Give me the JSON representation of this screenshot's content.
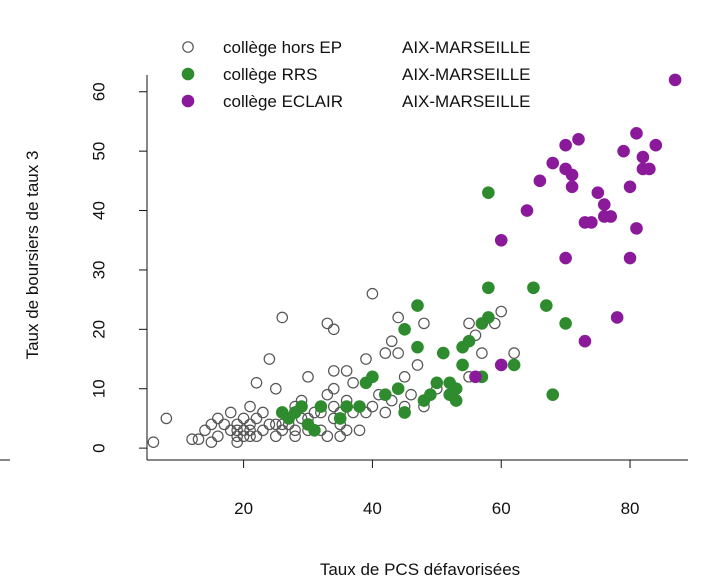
{
  "chart_data": {
    "type": "scatter",
    "title": "",
    "xlabel": "Taux de PCS défavorisées",
    "ylabel": "Taux de boursiers de taux 3",
    "xlim": [
      5,
      89
    ],
    "ylim": [
      -2,
      64
    ],
    "xticks": [
      20,
      40,
      60,
      80
    ],
    "yticks": [
      0,
      10,
      20,
      30,
      40,
      50,
      60
    ],
    "grid": false,
    "legend_position": "top-left",
    "series": [
      {
        "name": "collège hors EP",
        "region": "AIX-MARSEILLE",
        "marker": "open-circle",
        "color": "#555555",
        "points": [
          [
            6,
            1
          ],
          [
            8,
            5
          ],
          [
            12,
            1.5
          ],
          [
            13,
            1.5
          ],
          [
            14,
            3
          ],
          [
            15,
            1
          ],
          [
            15,
            4
          ],
          [
            16,
            2
          ],
          [
            16,
            5
          ],
          [
            17,
            4
          ],
          [
            18,
            3
          ],
          [
            18,
            6
          ],
          [
            19,
            1
          ],
          [
            19,
            2
          ],
          [
            19,
            3
          ],
          [
            19,
            4
          ],
          [
            20,
            2
          ],
          [
            20,
            3
          ],
          [
            20,
            5
          ],
          [
            21,
            2
          ],
          [
            21,
            3
          ],
          [
            21,
            4
          ],
          [
            21,
            7
          ],
          [
            22,
            2
          ],
          [
            22,
            5
          ],
          [
            22,
            11
          ],
          [
            23,
            3
          ],
          [
            23,
            6
          ],
          [
            24,
            4
          ],
          [
            24,
            15
          ],
          [
            25,
            2
          ],
          [
            25,
            4
          ],
          [
            25,
            10
          ],
          [
            26,
            3
          ],
          [
            26,
            4
          ],
          [
            26,
            6
          ],
          [
            26,
            22
          ],
          [
            27,
            4
          ],
          [
            27,
            5
          ],
          [
            28,
            2
          ],
          [
            28,
            3
          ],
          [
            28,
            7
          ],
          [
            29,
            5
          ],
          [
            29,
            8
          ],
          [
            30,
            3
          ],
          [
            30,
            5
          ],
          [
            30,
            12
          ],
          [
            31,
            6
          ],
          [
            32,
            3
          ],
          [
            32,
            6
          ],
          [
            33,
            2
          ],
          [
            33,
            9
          ],
          [
            33,
            21
          ],
          [
            34,
            5
          ],
          [
            34,
            7
          ],
          [
            34,
            10
          ],
          [
            34,
            13
          ],
          [
            34,
            20
          ],
          [
            35,
            4
          ],
          [
            35,
            2
          ],
          [
            35,
            6
          ],
          [
            36,
            3
          ],
          [
            36,
            8
          ],
          [
            36,
            13
          ],
          [
            37,
            6
          ],
          [
            37,
            11
          ],
          [
            38,
            3
          ],
          [
            38,
            7
          ],
          [
            39,
            6
          ],
          [
            39,
            15
          ],
          [
            40,
            7
          ],
          [
            40,
            26
          ],
          [
            41,
            9
          ],
          [
            42,
            6
          ],
          [
            42,
            9
          ],
          [
            42,
            16
          ],
          [
            43,
            8
          ],
          [
            43,
            18
          ],
          [
            44,
            10
          ],
          [
            44,
            16
          ],
          [
            44,
            22
          ],
          [
            45,
            7
          ],
          [
            45,
            12
          ],
          [
            46,
            9
          ],
          [
            47,
            14
          ],
          [
            48,
            7
          ],
          [
            48,
            21
          ],
          [
            50,
            10
          ],
          [
            55,
            21
          ],
          [
            55,
            12
          ],
          [
            56,
            19
          ],
          [
            57,
            16
          ],
          [
            59,
            21
          ],
          [
            60,
            23
          ],
          [
            62,
            16
          ]
        ]
      },
      {
        "name": "collège RRS",
        "region": "AIX-MARSEILLE",
        "marker": "filled-circle",
        "color": "#2e8b2e",
        "points": [
          [
            26,
            6
          ],
          [
            27,
            5
          ],
          [
            28,
            6
          ],
          [
            29,
            7
          ],
          [
            30,
            4
          ],
          [
            31,
            3
          ],
          [
            32,
            7
          ],
          [
            35,
            5
          ],
          [
            36,
            7
          ],
          [
            38,
            7
          ],
          [
            39,
            11
          ],
          [
            40,
            12
          ],
          [
            42,
            9
          ],
          [
            44,
            10
          ],
          [
            45,
            6
          ],
          [
            45,
            20
          ],
          [
            47,
            17
          ],
          [
            47,
            24
          ],
          [
            48,
            8
          ],
          [
            49,
            9
          ],
          [
            50,
            11
          ],
          [
            51,
            16
          ],
          [
            52,
            9
          ],
          [
            52,
            11
          ],
          [
            53,
            8
          ],
          [
            53,
            10
          ],
          [
            54,
            14
          ],
          [
            54,
            17
          ],
          [
            55,
            18
          ],
          [
            57,
            12
          ],
          [
            57,
            21
          ],
          [
            58,
            22
          ],
          [
            58,
            27
          ],
          [
            58,
            43
          ],
          [
            62,
            14
          ],
          [
            65,
            27
          ],
          [
            67,
            24
          ],
          [
            68,
            9
          ],
          [
            70,
            21
          ]
        ]
      },
      {
        "name": "collège ECLAIR",
        "region": "AIX-MARSEILLE",
        "marker": "filled-circle",
        "color": "#8b1a9b",
        "points": [
          [
            56,
            12
          ],
          [
            60,
            14
          ],
          [
            60,
            35
          ],
          [
            64,
            40
          ],
          [
            66,
            45
          ],
          [
            68,
            48
          ],
          [
            70,
            32
          ],
          [
            70,
            47
          ],
          [
            70,
            51
          ],
          [
            71,
            44
          ],
          [
            71,
            46
          ],
          [
            72,
            52
          ],
          [
            73,
            38
          ],
          [
            73,
            18
          ],
          [
            74,
            38
          ],
          [
            75,
            43
          ],
          [
            76,
            39
          ],
          [
            76,
            41
          ],
          [
            77,
            39
          ],
          [
            78,
            22
          ],
          [
            79,
            50
          ],
          [
            80,
            32
          ],
          [
            80,
            44
          ],
          [
            81,
            37
          ],
          [
            81,
            53
          ],
          [
            82,
            47
          ],
          [
            82,
            49
          ],
          [
            83,
            47
          ],
          [
            84,
            51
          ],
          [
            87,
            62
          ]
        ]
      }
    ]
  }
}
